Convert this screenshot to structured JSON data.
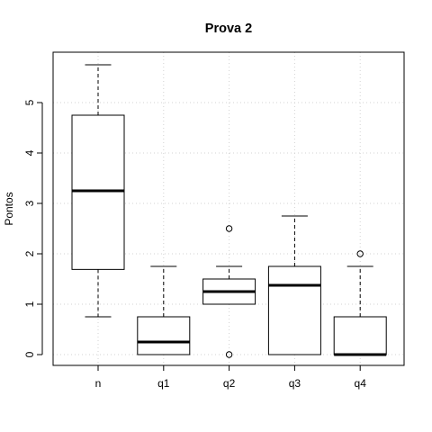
{
  "chart_data": {
    "type": "box",
    "title": "Prova 2",
    "xlabel": "",
    "ylabel": "Pontos",
    "ylim": [
      -0.25,
      6.0
    ],
    "yticks": [
      0,
      1,
      2,
      3,
      4,
      5
    ],
    "grid": true,
    "categories": [
      "n",
      "q1",
      "q2",
      "q3",
      "q4"
    ],
    "boxes": [
      {
        "category": "n",
        "whisker_low": 0.75,
        "q1": 1.69,
        "median": 3.25,
        "q3": 4.75,
        "whisker_high": 5.75,
        "outliers": []
      },
      {
        "category": "q1",
        "whisker_low": 0.0,
        "q1": 0.0,
        "median": 0.25,
        "q3": 0.75,
        "whisker_high": 1.75,
        "outliers": []
      },
      {
        "category": "q2",
        "whisker_low": 1.0,
        "q1": 1.0,
        "median": 1.25,
        "q3": 1.5,
        "whisker_high": 1.75,
        "outliers": [
          0.0,
          2.5
        ]
      },
      {
        "category": "q3",
        "whisker_low": 0.0,
        "q1": 0.0,
        "median": 1.375,
        "q3": 1.75,
        "whisker_high": 2.75,
        "outliers": []
      },
      {
        "category": "q4",
        "whisker_low": 0.0,
        "q1": 0.0,
        "median": 0.0,
        "q3": 0.75,
        "whisker_high": 1.75,
        "outliers": [
          2.0
        ]
      }
    ]
  }
}
